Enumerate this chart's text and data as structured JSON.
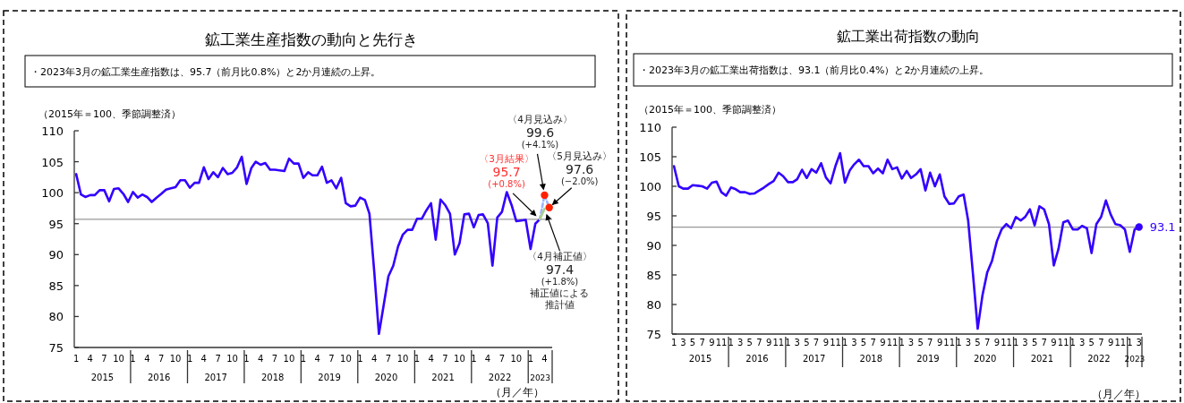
{
  "chart_data": [
    {
      "type": "line",
      "title": "鉱工業生産指数の動向と先行き",
      "subtitle": "・2023年3月の鉱工業生産指数は、95.7（前月比0.8%）と2か月連続の上昇。",
      "ylabel": "（2015年＝100、季節調整済）",
      "xlabel": "（月／年）",
      "x": [
        "2015-01",
        "2015-02",
        "2015-03",
        "2015-04",
        "2015-05",
        "2015-06",
        "2015-07",
        "2015-08",
        "2015-09",
        "2015-10",
        "2015-11",
        "2015-12",
        "2016-01",
        "2016-02",
        "2016-03",
        "2016-04",
        "2016-05",
        "2016-06",
        "2016-07",
        "2016-08",
        "2016-09",
        "2016-10",
        "2016-11",
        "2016-12",
        "2017-01",
        "2017-02",
        "2017-03",
        "2017-04",
        "2017-05",
        "2017-06",
        "2017-07",
        "2017-08",
        "2017-09",
        "2017-10",
        "2017-11",
        "2017-12",
        "2018-01",
        "2018-02",
        "2018-03",
        "2018-04",
        "2018-05",
        "2018-06",
        "2018-07",
        "2018-08",
        "2018-09",
        "2018-10",
        "2018-11",
        "2018-12",
        "2019-01",
        "2019-02",
        "2019-03",
        "2019-04",
        "2019-05",
        "2019-06",
        "2019-07",
        "2019-08",
        "2019-09",
        "2019-10",
        "2019-11",
        "2019-12",
        "2020-01",
        "2020-02",
        "2020-03",
        "2020-04",
        "2020-05",
        "2020-06",
        "2020-07",
        "2020-08",
        "2020-09",
        "2020-10",
        "2020-11",
        "2020-12",
        "2021-01",
        "2021-02",
        "2021-03",
        "2021-04",
        "2021-05",
        "2021-06",
        "2021-07",
        "2021-08",
        "2021-09",
        "2021-10",
        "2021-11",
        "2021-12",
        "2022-01",
        "2022-02",
        "2022-03",
        "2022-04",
        "2022-05",
        "2022-06",
        "2022-07",
        "2022-08",
        "2022-09",
        "2022-10",
        "2022-11",
        "2022-12",
        "2023-01",
        "2023-02",
        "2023-03"
      ],
      "xlim": [
        "2014-12-20",
        "2023-05-20"
      ],
      "xticks": [
        {
          "value": "2015-01",
          "label": "1"
        },
        {
          "value": "2015-04",
          "label": "4"
        },
        {
          "value": "2015-07",
          "label": "7"
        },
        {
          "value": "2015-10",
          "label": "10"
        },
        {
          "value": "2016-01",
          "label": "1"
        },
        {
          "value": "2016-04",
          "label": "4"
        },
        {
          "value": "2016-07",
          "label": "7"
        },
        {
          "value": "2016-10",
          "label": "10"
        },
        {
          "value": "2017-01",
          "label": "1"
        },
        {
          "value": "2017-04",
          "label": "4"
        },
        {
          "value": "2017-07",
          "label": "7"
        },
        {
          "value": "2017-10",
          "label": "10"
        },
        {
          "value": "2018-01",
          "label": "1"
        },
        {
          "value": "2018-04",
          "label": "4"
        },
        {
          "value": "2018-07",
          "label": "7"
        },
        {
          "value": "2018-10",
          "label": "10"
        },
        {
          "value": "2019-01",
          "label": "1"
        },
        {
          "value": "2019-04",
          "label": "4"
        },
        {
          "value": "2019-07",
          "label": "7"
        },
        {
          "value": "2019-10",
          "label": "10"
        },
        {
          "value": "2020-01",
          "label": "1"
        },
        {
          "value": "2020-04",
          "label": "4"
        },
        {
          "value": "2020-07",
          "label": "7"
        },
        {
          "value": "2020-10",
          "label": "10"
        },
        {
          "value": "2021-01",
          "label": "1"
        },
        {
          "value": "2021-04",
          "label": "4"
        },
        {
          "value": "2021-07",
          "label": "7"
        },
        {
          "value": "2021-10",
          "label": "10"
        },
        {
          "value": "2022-01",
          "label": "1"
        },
        {
          "value": "2022-04",
          "label": "4"
        },
        {
          "value": "2022-07",
          "label": "7"
        },
        {
          "value": "2022-10",
          "label": "10"
        },
        {
          "value": "2023-01",
          "label": "1"
        },
        {
          "value": "2023-04",
          "label": "4"
        }
      ],
      "ylim": [
        75,
        110
      ],
      "yticks": [
        75,
        80,
        85,
        90,
        95,
        100,
        105,
        110
      ],
      "series": [
        {
          "color": "#3300ff",
          "values": [
            103.0,
            99.7,
            99.3,
            99.6,
            99.6,
            100.4,
            100.4,
            98.6,
            100.6,
            100.7,
            99.8,
            98.5,
            100.1,
            99.2,
            99.7,
            99.3,
            98.5,
            99.2,
            99.8,
            100.5,
            100.7,
            100.9,
            102.0,
            102.0,
            100.8,
            101.6,
            101.6,
            104.1,
            102.2,
            103.3,
            102.5,
            104.0,
            103.0,
            103.2,
            104.1,
            105.8,
            101.4,
            104.0,
            105.0,
            104.5,
            104.8,
            103.7,
            103.7,
            103.6,
            103.5,
            105.5,
            104.7,
            104.7,
            102.4,
            103.3,
            102.8,
            102.8,
            104.2,
            101.6,
            102.0,
            100.7,
            102.4,
            98.3,
            97.8,
            97.9,
            99.2,
            98.8,
            96.6,
            87.2,
            77.2,
            81.9,
            86.5,
            88.2,
            91.3,
            93.2,
            94.0,
            94.0,
            95.8,
            95.8,
            97.1,
            98.3,
            92.4,
            98.9,
            98.0,
            96.6,
            90.0,
            91.8,
            96.5,
            96.6,
            94.4,
            96.4,
            96.5,
            95.1,
            88.2,
            96.0,
            96.9,
            100.1,
            98.0,
            95.4,
            95.5,
            95.6,
            90.9,
            95.0,
            95.7
          ]
        },
        {
          "type": "line",
          "color": "#9db3ff",
          "line_style": "dashed",
          "x": [
            "2023-03",
            "2023-04",
            "2023-05"
          ],
          "values": [
            95.7,
            99.6,
            97.6
          ]
        },
        {
          "type": "line",
          "color": "#a8d08d",
          "x": [
            "2023-03",
            "2023-04"
          ],
          "values": [
            95.7,
            97.4
          ]
        },
        {
          "type": "scatter",
          "color": "#ff2000",
          "marker": "circle",
          "x": [
            "2023-04",
            "2023-05"
          ],
          "values": [
            99.6,
            97.6
          ]
        }
      ],
      "ref_lines": [
        {
          "axis": "y",
          "value": 95.7,
          "color": "#999999"
        }
      ],
      "annotations": [
        "2015",
        "2016",
        "2017",
        "2018",
        "2019",
        "2020",
        "2021",
        "2022",
        "2023",
        {
          "text": "〈3月結果〉\n95.7\n(+0.8%)",
          "x": "2023-03",
          "y": 95.7
        },
        {
          "text": "〈4月見込み〉\n99.6\n(+4.1%)",
          "x": "2023-04",
          "y": 99.6
        },
        {
          "text": "〈5月見込み〉\n97.6\n(−2.0%)",
          "x": "2023-05",
          "y": 97.6
        },
        {
          "text": "〈4月補正値〉\n97.4\n(+1.8%)\n補正値による推計値",
          "x": "2023-04",
          "y": 97.4
        }
      ]
    },
    {
      "type": "line",
      "title": "鉱工業出荷指数の動向",
      "subtitle": "・2023年3月の鉱工業出荷指数は、93.1（前月比0.4%）と2か月連続の上昇。",
      "ylabel": "（2015年＝100、季節調整済）",
      "xlabel": "（月／年）",
      "x": [
        "2015-01",
        "2015-02",
        "2015-03",
        "2015-04",
        "2015-05",
        "2015-06",
        "2015-07",
        "2015-08",
        "2015-09",
        "2015-10",
        "2015-11",
        "2015-12",
        "2016-01",
        "2016-02",
        "2016-03",
        "2016-04",
        "2016-05",
        "2016-06",
        "2016-07",
        "2016-08",
        "2016-09",
        "2016-10",
        "2016-11",
        "2016-12",
        "2017-01",
        "2017-02",
        "2017-03",
        "2017-04",
        "2017-05",
        "2017-06",
        "2017-07",
        "2017-08",
        "2017-09",
        "2017-10",
        "2017-11",
        "2017-12",
        "2018-01",
        "2018-02",
        "2018-03",
        "2018-04",
        "2018-05",
        "2018-06",
        "2018-07",
        "2018-08",
        "2018-09",
        "2018-10",
        "2018-11",
        "2018-12",
        "2019-01",
        "2019-02",
        "2019-03",
        "2019-04",
        "2019-05",
        "2019-06",
        "2019-07",
        "2019-08",
        "2019-09",
        "2019-10",
        "2019-11",
        "2019-12",
        "2020-01",
        "2020-02",
        "2020-03",
        "2020-04",
        "2020-05",
        "2020-06",
        "2020-07",
        "2020-08",
        "2020-09",
        "2020-10",
        "2020-11",
        "2020-12",
        "2021-01",
        "2021-02",
        "2021-03",
        "2021-04",
        "2021-05",
        "2021-06",
        "2021-07",
        "2021-08",
        "2021-09",
        "2021-10",
        "2021-11",
        "2021-12",
        "2022-01",
        "2022-02",
        "2022-03",
        "2022-04",
        "2022-05",
        "2022-06",
        "2022-07",
        "2022-08",
        "2022-09",
        "2022-10",
        "2022-11",
        "2022-12",
        "2023-01",
        "2023-02",
        "2023-03"
      ],
      "xlim": [
        "2014-12-20",
        "2023-03-20"
      ],
      "xticks": [
        {
          "value": "2015-01",
          "label": "1"
        },
        {
          "value": "2015-03",
          "label": "3"
        },
        {
          "value": "2015-05",
          "label": "5"
        },
        {
          "value": "2015-07",
          "label": "7"
        },
        {
          "value": "2015-09",
          "label": "9"
        },
        {
          "value": "2015-11",
          "label": "11"
        },
        {
          "value": "2016-01",
          "label": "1"
        },
        {
          "value": "2016-03",
          "label": "3"
        },
        {
          "value": "2016-05",
          "label": "5"
        },
        {
          "value": "2016-07",
          "label": "7"
        },
        {
          "value": "2016-09",
          "label": "9"
        },
        {
          "value": "2016-11",
          "label": "11"
        },
        {
          "value": "2017-01",
          "label": "1"
        },
        {
          "value": "2017-03",
          "label": "3"
        },
        {
          "value": "2017-05",
          "label": "5"
        },
        {
          "value": "2017-07",
          "label": "7"
        },
        {
          "value": "2017-09",
          "label": "9"
        },
        {
          "value": "2017-11",
          "label": "11"
        },
        {
          "value": "2018-01",
          "label": "1"
        },
        {
          "value": "2018-03",
          "label": "3"
        },
        {
          "value": "2018-05",
          "label": "5"
        },
        {
          "value": "2018-07",
          "label": "7"
        },
        {
          "value": "2018-09",
          "label": "9"
        },
        {
          "value": "2018-11",
          "label": "11"
        },
        {
          "value": "2019-01",
          "label": "1"
        },
        {
          "value": "2019-03",
          "label": "3"
        },
        {
          "value": "2019-05",
          "label": "5"
        },
        {
          "value": "2019-07",
          "label": "7"
        },
        {
          "value": "2019-09",
          "label": "9"
        },
        {
          "value": "2019-11",
          "label": "11"
        },
        {
          "value": "2020-01",
          "label": "1"
        },
        {
          "value": "2020-03",
          "label": "3"
        },
        {
          "value": "2020-05",
          "label": "5"
        },
        {
          "value": "2020-07",
          "label": "7"
        },
        {
          "value": "2020-09",
          "label": "9"
        },
        {
          "value": "2020-11",
          "label": "11"
        },
        {
          "value": "2021-01",
          "label": "1"
        },
        {
          "value": "2021-03",
          "label": "3"
        },
        {
          "value": "2021-05",
          "label": "5"
        },
        {
          "value": "2021-07",
          "label": "7"
        },
        {
          "value": "2021-09",
          "label": "9"
        },
        {
          "value": "2021-11",
          "label": "11"
        },
        {
          "value": "2022-01",
          "label": "1"
        },
        {
          "value": "2022-03",
          "label": "3"
        },
        {
          "value": "2022-05",
          "label": "5"
        },
        {
          "value": "2022-07",
          "label": "7"
        },
        {
          "value": "2022-09",
          "label": "9"
        },
        {
          "value": "2022-11",
          "label": "11"
        },
        {
          "value": "2023-01",
          "label": "1"
        },
        {
          "value": "2023-03",
          "label": "3"
        }
      ],
      "ylim": [
        75,
        110
      ],
      "yticks": [
        75,
        80,
        85,
        90,
        95,
        100,
        105,
        110
      ],
      "series": [
        {
          "color": "#3300ff",
          "values": [
            103.4,
            100.0,
            99.6,
            99.6,
            100.2,
            100.1,
            100.0,
            99.6,
            100.6,
            100.8,
            99.0,
            98.4,
            99.8,
            99.5,
            99.0,
            99.0,
            98.7,
            98.8,
            99.3,
            99.8,
            100.4,
            100.9,
            102.3,
            101.7,
            100.7,
            100.7,
            101.2,
            102.8,
            101.4,
            102.9,
            102.3,
            103.9,
            101.5,
            100.5,
            103.4,
            105.6,
            100.6,
            102.7,
            103.7,
            104.5,
            103.4,
            103.4,
            102.2,
            103.0,
            102.2,
            104.5,
            102.9,
            103.2,
            101.3,
            102.6,
            101.4,
            102.0,
            102.9,
            99.3,
            102.3,
            100.0,
            102.0,
            98.3,
            97.0,
            97.1,
            98.3,
            98.6,
            94.2,
            85.1,
            75.9,
            81.6,
            85.4,
            87.4,
            90.7,
            92.7,
            93.6,
            92.9,
            94.8,
            94.2,
            94.8,
            96.1,
            93.4,
            96.6,
            96.1,
            93.6,
            86.6,
            89.4,
            93.9,
            94.2,
            92.7,
            92.7,
            93.3,
            92.9,
            88.7,
            93.6,
            94.8,
            97.6,
            95.2,
            93.6,
            93.4,
            92.7,
            88.9,
            92.7,
            93.1
          ]
        },
        {
          "type": "scatter",
          "color": "#3300ff",
          "marker": "circle",
          "x": [
            "2023-03"
          ],
          "values": [
            93.1
          ]
        }
      ],
      "ref_lines": [
        {
          "axis": "y",
          "value": 93.1,
          "color": "#999999"
        }
      ],
      "annotations": [
        "2015",
        "2016",
        "2017",
        "2018",
        "2019",
        "2020",
        "2021",
        "2022",
        "2023",
        {
          "text": "93.1",
          "x": "2023-03",
          "y": 93.1
        }
      ]
    }
  ]
}
